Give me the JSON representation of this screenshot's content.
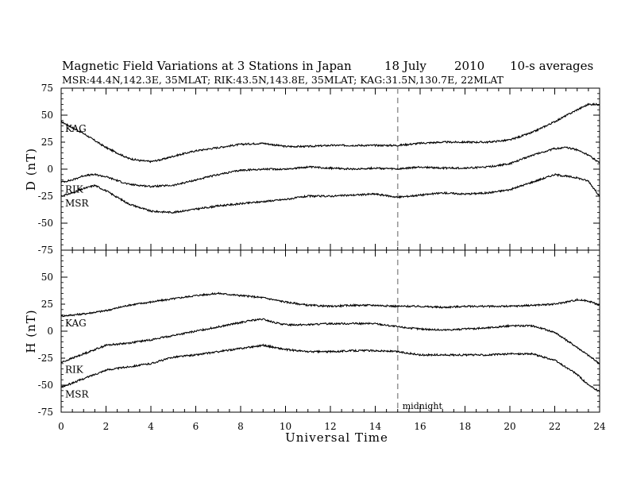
{
  "chart_data": {
    "type": "line",
    "title": "Magnetic Field Variations at 3 Stations in Japan",
    "date_text": "18 July",
    "year_text": "2010",
    "averaging_text": "10-s averages",
    "subtitle": "MSR:44.4N,142.3E, 35MLAT;  RIK:43.5N,143.8E, 35MLAT;  KAG:31.5N,130.7E, 22MLAT",
    "xlabel": "Universal Time",
    "xlim": [
      0,
      24
    ],
    "x_ticks": [
      "0",
      "2",
      "4",
      "6",
      "8",
      "10",
      "12",
      "14",
      "16",
      "18",
      "20",
      "22",
      "24"
    ],
    "midnight": {
      "x": 15,
      "label": "midnight"
    },
    "panels": [
      {
        "ylabel": "D (nT)",
        "ylim": [
          -75,
          75
        ],
        "y_ticks": [
          "75",
          "50",
          "25",
          "0",
          "-25",
          "-50",
          "-75"
        ],
        "series": [
          {
            "name": "KAG",
            "x": [
              0,
              1,
              2,
              3,
              3.5,
              4,
              4.5,
              5,
              6,
              7,
              8,
              9,
              10,
              11,
              12,
              13,
              14,
              15,
              16,
              17,
              18,
              19,
              20,
              21,
              22,
              23,
              23.5,
              24
            ],
            "values": [
              44,
              33,
              20,
              10,
              8,
              7,
              9,
              12,
              17,
              20,
              23,
              24,
              21,
              21,
              22,
              22,
              22,
              22,
              24,
              25,
              25,
              25,
              27,
              34,
              44,
              55,
              60,
              60
            ]
          },
          {
            "name": "RIK",
            "x": [
              0,
              0.5,
              1,
              1.5,
              2,
              3,
              4,
              5,
              6,
              7,
              8,
              9,
              10,
              11,
              12,
              13,
              14,
              15,
              16,
              17,
              18,
              19,
              20,
              21,
              22,
              22.5,
              23,
              23.5,
              24
            ],
            "values": [
              -12,
              -10,
              -6,
              -5,
              -7,
              -14,
              -16,
              -15,
              -10,
              -5,
              -1,
              0,
              0,
              2,
              1,
              0,
              1,
              0,
              2,
              1,
              1,
              2,
              5,
              13,
              19,
              20,
              18,
              13,
              6
            ]
          },
          {
            "name": "MSR",
            "x": [
              0,
              0.5,
              1,
              1.5,
              2,
              3,
              4,
              5,
              6,
              7,
              8,
              9,
              10,
              11,
              12,
              13,
              14,
              15,
              16,
              17,
              18,
              19,
              20,
              21,
              22,
              23,
              23.5,
              24
            ],
            "values": [
              -25,
              -22,
              -18,
              -15,
              -20,
              -32,
              -39,
              -40,
              -37,
              -34,
              -32,
              -30,
              -28,
              -25,
              -25,
              -24,
              -23,
              -26,
              -24,
              -22,
              -23,
              -22,
              -19,
              -12,
              -5,
              -8,
              -11,
              -25
            ]
          }
        ]
      },
      {
        "ylabel": "H (nT)",
        "ylim": [
          -75,
          75
        ],
        "y_ticks": [
          "75",
          "50",
          "25",
          "0",
          "-25",
          "-50",
          "-75"
        ],
        "series": [
          {
            "name": "KAG",
            "x": [
              0,
              1,
              2,
              3,
              4,
              5,
              6,
              7,
              8,
              9,
              10,
              11,
              12,
              13,
              14,
              15,
              16,
              17,
              18,
              19,
              20,
              21,
              22,
              22.5,
              23,
              23.5,
              24
            ],
            "values": [
              14,
              16,
              19,
              24,
              27,
              30,
              33,
              35,
              33,
              31,
              27,
              24,
              23,
              24,
              24,
              23,
              23,
              22,
              23,
              23,
              23,
              24,
              25,
              27,
              29,
              28,
              24
            ]
          },
          {
            "name": "RIK",
            "x": [
              0,
              1,
              2,
              3,
              4,
              5,
              6,
              7,
              8,
              8.5,
              9,
              9.5,
              10,
              11,
              12,
              13,
              14,
              15,
              16,
              17,
              18,
              19,
              20,
              21,
              22,
              23,
              24
            ],
            "values": [
              -29,
              -21,
              -13,
              -11,
              -8,
              -4,
              0,
              4,
              8,
              10,
              11,
              8,
              6,
              6,
              7,
              7,
              7,
              4,
              2,
              1,
              2,
              3,
              5,
              5,
              -1,
              -15,
              -30
            ]
          },
          {
            "name": "MSR",
            "x": [
              0,
              1,
              2,
              3,
              4,
              5,
              6,
              7,
              8,
              9,
              10,
              11,
              12,
              13,
              14,
              15,
              16,
              17,
              18,
              19,
              20,
              21,
              22,
              23,
              23.5,
              24
            ],
            "values": [
              -52,
              -44,
              -36,
              -33,
              -30,
              -24,
              -22,
              -19,
              -16,
              -13,
              -17,
              -19,
              -19,
              -18,
              -18,
              -19,
              -22,
              -22,
              -22,
              -22,
              -21,
              -21,
              -27,
              -40,
              -50,
              -56
            ]
          }
        ]
      }
    ]
  }
}
